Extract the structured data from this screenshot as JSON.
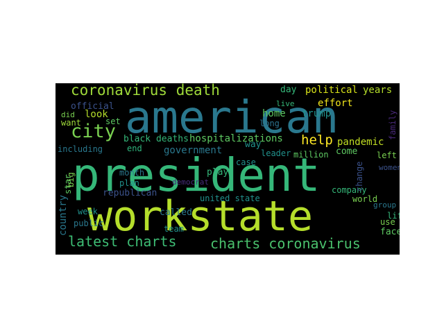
{
  "palette": {
    "background": "#000000",
    "page": "#ffffff",
    "viridis": [
      "#440154",
      "#3b528b",
      "#21918c",
      "#2a788e",
      "#35b779",
      "#5ec962",
      "#a0da39",
      "#c8e020",
      "#fde725"
    ]
  },
  "words": [
    {
      "id": "president",
      "text": "president",
      "color": "#35b779"
    },
    {
      "id": "workstate",
      "text": "workstate",
      "color": "#b5de2b"
    },
    {
      "id": "american",
      "text": "american",
      "color": "#2a788e"
    },
    {
      "id": "coronavirus-death",
      "text": "coronavirus death",
      "color": "#9fda3a"
    },
    {
      "id": "city",
      "text": "city",
      "color": "#7ad151"
    },
    {
      "id": "latest-charts",
      "text": "latest charts",
      "color": "#3dbc74"
    },
    {
      "id": "charts-coronavirus",
      "text": "charts coronavirus",
      "color": "#4ac16d"
    },
    {
      "id": "help",
      "text": "help",
      "color": "#fde725"
    },
    {
      "id": "hospitalizations",
      "text": "hospitalizations",
      "color": "#5ec962"
    },
    {
      "id": "black-deaths",
      "text": "black deaths",
      "color": "#35b779"
    },
    {
      "id": "political",
      "text": "political",
      "color": "#d8e219"
    },
    {
      "id": "years",
      "text": "years",
      "color": "#b5de2b"
    },
    {
      "id": "government",
      "text": "government",
      "color": "#2a788e"
    },
    {
      "id": "pandemic",
      "text": "pandemic",
      "color": "#c2df23"
    },
    {
      "id": "official",
      "text": "official",
      "color": "#3b528b"
    },
    {
      "id": "look",
      "text": "look",
      "color": "#b5de2b"
    },
    {
      "id": "home",
      "text": "home",
      "color": "#5ec962"
    },
    {
      "id": "trump",
      "text": "trump",
      "color": "#21918c"
    },
    {
      "id": "day",
      "text": "day",
      "color": "#35b779"
    },
    {
      "id": "effort",
      "text": "effort",
      "color": "#f0e51c"
    },
    {
      "id": "long",
      "text": "long",
      "color": "#2c728e"
    },
    {
      "id": "live",
      "text": "live",
      "color": "#35b779"
    },
    {
      "id": "want",
      "text": "want",
      "color": "#9fda3a"
    },
    {
      "id": "did",
      "text": "did",
      "color": "#7ad151"
    },
    {
      "id": "set",
      "text": "set",
      "color": "#5ec962"
    },
    {
      "id": "end",
      "text": "end",
      "color": "#2fb47c"
    },
    {
      "id": "including",
      "text": "including",
      "color": "#2a788e"
    },
    {
      "id": "come",
      "text": "come",
      "color": "#5ec962"
    },
    {
      "id": "way",
      "text": "way",
      "color": "#21918c"
    },
    {
      "id": "leader",
      "text": "leader",
      "color": "#21918c"
    },
    {
      "id": "million",
      "text": "million",
      "color": "#5ec962"
    },
    {
      "id": "left",
      "text": "left",
      "color": "#7ad151"
    },
    {
      "id": "month",
      "text": "month",
      "color": "#2a788e"
    },
    {
      "id": "plan",
      "text": "plan",
      "color": "#21918c"
    },
    {
      "id": "play",
      "text": "play",
      "color": "#35b779"
    },
    {
      "id": "case",
      "text": "case",
      "color": "#21918c"
    },
    {
      "id": "democrat",
      "text": "democrat",
      "color": "#472d7b"
    },
    {
      "id": "republican",
      "text": "republican",
      "color": "#3b528b"
    },
    {
      "id": "called",
      "text": "called",
      "color": "#2a788e"
    },
    {
      "id": "united-state",
      "text": "united state",
      "color": "#21918c"
    },
    {
      "id": "company",
      "text": "company",
      "color": "#35b779"
    },
    {
      "id": "world",
      "text": "world",
      "color": "#7ad151"
    },
    {
      "id": "group",
      "text": "group",
      "color": "#2a788e"
    },
    {
      "id": "week",
      "text": "week",
      "color": "#21918c"
    },
    {
      "id": "public",
      "text": "public",
      "color": "#2a788e"
    },
    {
      "id": "team",
      "text": "team",
      "color": "#21918c"
    },
    {
      "id": "use",
      "text": "use",
      "color": "#7ad151"
    },
    {
      "id": "life",
      "text": "life",
      "color": "#35b779"
    },
    {
      "id": "face",
      "text": "face",
      "color": "#5ec962"
    },
    {
      "id": "women",
      "text": "women",
      "color": "#3b528b"
    },
    {
      "id": "star",
      "text": "star",
      "color": "#5ec962"
    },
    {
      "id": "big",
      "text": "big",
      "color": "#7ad151"
    },
    {
      "id": "country",
      "text": "country",
      "color": "#2a788e"
    },
    {
      "id": "change",
      "text": "change",
      "color": "#3b528b"
    },
    {
      "id": "family",
      "text": "family",
      "color": "#482878"
    }
  ]
}
